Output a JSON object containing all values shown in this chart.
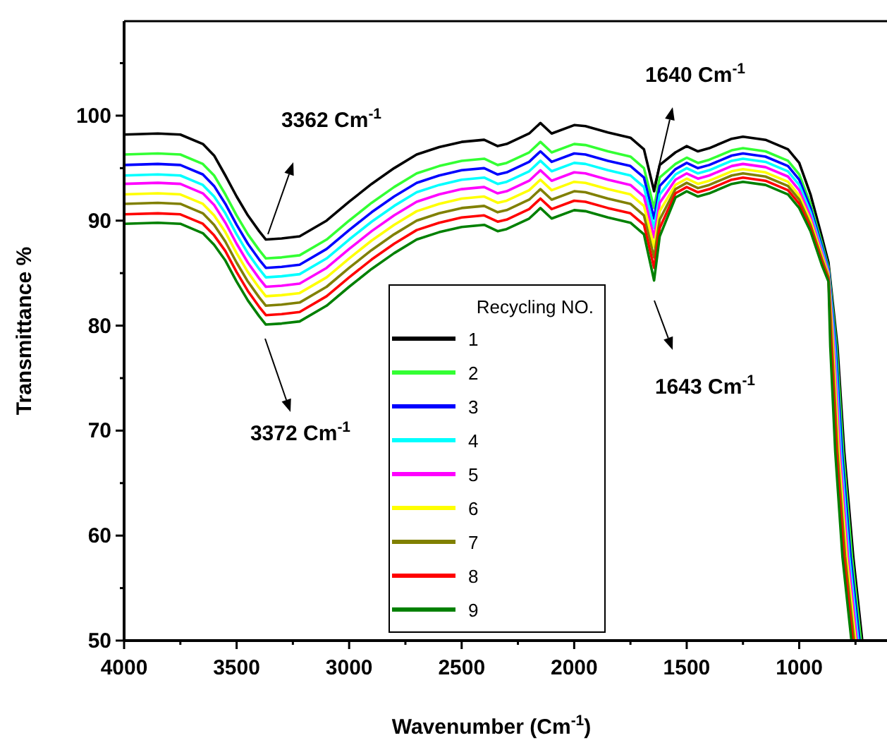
{
  "chart_data": {
    "type": "line",
    "xlabel": "Wavenumber (Cm$^{-1}$)",
    "ylabel": "Transmittance %",
    "legend_title": "Recycling NO.",
    "legend": "bottom",
    "grid": false,
    "marker": "none",
    "line_style": "solid",
    "xlim": [
      4000,
      610
    ],
    "ylim": [
      50,
      109
    ],
    "xticks": [
      4000,
      {
        "value": 3750,
        "label": null
      },
      3500,
      {
        "value": 3250,
        "label": null
      },
      3000,
      {
        "value": 2750,
        "label": null
      },
      2500,
      {
        "value": 2250,
        "label": null
      },
      2000,
      {
        "value": 1750,
        "label": null
      },
      1500,
      {
        "value": 1250,
        "label": null
      },
      1000,
      {
        "value": 750,
        "label": null
      }
    ],
    "yticks": [
      50,
      {
        "value": 55,
        "label": null
      },
      60,
      {
        "value": 65,
        "label": null
      },
      70,
      {
        "value": 75,
        "label": null
      },
      80,
      {
        "value": 85,
        "label": null
      },
      90,
      {
        "value": 95,
        "label": null
      },
      100,
      {
        "value": 105,
        "label": null
      }
    ],
    "series": [
      {
        "name": "1",
        "color": "#000000",
        "x": [
          4000,
          3850,
          3750,
          3650,
          3600,
          3550,
          3500,
          3450,
          3400,
          3370,
          3300,
          3220,
          3100,
          3000,
          2900,
          2800,
          2700,
          2600,
          2500,
          2400,
          2340,
          2300,
          2200,
          2150,
          2100,
          2000,
          1950,
          1850,
          1750,
          1690,
          1645,
          1620,
          1550,
          1500,
          1450,
          1400,
          1300,
          1250,
          1150,
          1050,
          1000,
          950,
          900,
          870,
          830,
          800,
          760,
          720
        ],
        "values": [
          98.2,
          98.3,
          98.2,
          97.3,
          96.2,
          94.3,
          92.3,
          90.5,
          89.0,
          88.2,
          88.3,
          88.5,
          90.0,
          91.8,
          93.5,
          95.0,
          96.3,
          97.0,
          97.5,
          97.7,
          97.1,
          97.3,
          98.3,
          99.3,
          98.3,
          99.1,
          99.0,
          98.4,
          97.9,
          96.8,
          92.8,
          95.3,
          96.5,
          97.1,
          96.6,
          96.9,
          97.8,
          98.0,
          97.7,
          96.8,
          95.5,
          92.5,
          88.5,
          86.0,
          78.0,
          68.0,
          58.0,
          50
        ]
      },
      {
        "name": "2",
        "color": "#33ff33",
        "x": [
          4000,
          3850,
          3750,
          3650,
          3600,
          3550,
          3500,
          3450,
          3400,
          3370,
          3300,
          3220,
          3100,
          3000,
          2900,
          2800,
          2700,
          2600,
          2500,
          2400,
          2340,
          2300,
          2200,
          2150,
          2100,
          2000,
          1950,
          1850,
          1750,
          1690,
          1645,
          1620,
          1550,
          1500,
          1450,
          1400,
          1300,
          1250,
          1150,
          1050,
          1000,
          950,
          900,
          870,
          834,
          805,
          766,
          726
        ],
        "values": [
          96.3,
          96.4,
          96.3,
          95.4,
          94.3,
          92.5,
          90.5,
          88.7,
          87.2,
          86.4,
          86.5,
          86.7,
          88.2,
          90.0,
          91.7,
          93.2,
          94.5,
          95.2,
          95.7,
          95.9,
          95.3,
          95.5,
          96.5,
          97.5,
          96.5,
          97.3,
          97.2,
          96.6,
          96.1,
          95.0,
          91.2,
          94.1,
          95.4,
          96.0,
          95.5,
          95.8,
          96.7,
          96.9,
          96.6,
          95.7,
          94.4,
          91.6,
          87.9,
          85.6,
          78.0,
          68.0,
          58.0,
          50
        ]
      },
      {
        "name": "3",
        "color": "#0000ff",
        "x": [
          4000,
          3850,
          3750,
          3650,
          3600,
          3550,
          3500,
          3450,
          3400,
          3370,
          3300,
          3220,
          3100,
          3000,
          2900,
          2800,
          2700,
          2600,
          2500,
          2400,
          2340,
          2300,
          2200,
          2150,
          2100,
          2000,
          1950,
          1850,
          1750,
          1690,
          1645,
          1620,
          1550,
          1500,
          1450,
          1400,
          1300,
          1250,
          1150,
          1050,
          1000,
          950,
          900,
          870,
          838,
          810,
          772,
          732
        ],
        "values": [
          95.3,
          95.4,
          95.3,
          94.4,
          93.3,
          91.6,
          89.6,
          87.8,
          86.3,
          85.5,
          85.6,
          85.8,
          87.3,
          89.1,
          90.8,
          92.3,
          93.6,
          94.3,
          94.8,
          95.0,
          94.4,
          94.6,
          95.6,
          96.6,
          95.6,
          96.4,
          96.3,
          95.7,
          95.2,
          94.1,
          90.2,
          93.3,
          94.9,
          95.5,
          95.0,
          95.3,
          96.2,
          96.4,
          96.1,
          95.2,
          93.9,
          91.2,
          87.6,
          85.4,
          78.0,
          68.0,
          58.0,
          50
        ]
      },
      {
        "name": "4",
        "color": "#00ffff",
        "x": [
          4000,
          3850,
          3750,
          3650,
          3600,
          3550,
          3500,
          3450,
          3400,
          3370,
          3300,
          3220,
          3100,
          3000,
          2900,
          2800,
          2700,
          2600,
          2500,
          2400,
          2340,
          2300,
          2200,
          2150,
          2100,
          2000,
          1950,
          1850,
          1750,
          1690,
          1645,
          1620,
          1550,
          1500,
          1450,
          1400,
          1300,
          1250,
          1150,
          1050,
          1000,
          950,
          900,
          870,
          842,
          815,
          778,
          738
        ],
        "values": [
          94.3,
          94.4,
          94.3,
          93.4,
          92.3,
          90.7,
          88.7,
          86.9,
          85.4,
          84.6,
          84.7,
          84.9,
          86.4,
          88.2,
          89.9,
          91.4,
          92.7,
          93.4,
          93.9,
          94.1,
          93.5,
          93.7,
          94.7,
          95.7,
          94.7,
          95.5,
          95.4,
          94.8,
          94.3,
          93.2,
          89.3,
          92.5,
          94.4,
          95.0,
          94.5,
          94.8,
          95.7,
          95.9,
          95.6,
          94.7,
          93.4,
          90.8,
          87.3,
          85.2,
          78.0,
          68.0,
          58.0,
          50
        ]
      },
      {
        "name": "5",
        "color": "#ff00ff",
        "x": [
          4000,
          3850,
          3750,
          3650,
          3600,
          3550,
          3500,
          3450,
          3400,
          3370,
          3300,
          3220,
          3100,
          3000,
          2900,
          2800,
          2700,
          2600,
          2500,
          2400,
          2340,
          2300,
          2200,
          2150,
          2100,
          2000,
          1950,
          1850,
          1750,
          1690,
          1645,
          1620,
          1550,
          1500,
          1450,
          1400,
          1300,
          1250,
          1150,
          1050,
          1000,
          950,
          900,
          870,
          846,
          820,
          784,
          744
        ],
        "values": [
          93.5,
          93.6,
          93.5,
          92.6,
          91.5,
          89.8,
          87.8,
          86.0,
          84.5,
          83.7,
          83.8,
          84.0,
          85.5,
          87.3,
          89.0,
          90.5,
          91.8,
          92.5,
          93.0,
          93.2,
          92.6,
          92.8,
          93.8,
          94.8,
          93.8,
          94.6,
          94.5,
          93.9,
          93.4,
          92.3,
          88.4,
          91.7,
          93.9,
          94.5,
          94.0,
          94.3,
          95.2,
          95.4,
          95.1,
          94.2,
          92.9,
          90.4,
          87.0,
          85.0,
          78.0,
          68.0,
          58.0,
          50
        ]
      },
      {
        "name": "6",
        "color": "#ffff00",
        "x": [
          4000,
          3850,
          3750,
          3650,
          3600,
          3550,
          3500,
          3450,
          3400,
          3370,
          3300,
          3220,
          3100,
          3000,
          2900,
          2800,
          2700,
          2600,
          2500,
          2400,
          2340,
          2300,
          2200,
          2150,
          2100,
          2000,
          1950,
          1850,
          1750,
          1690,
          1645,
          1620,
          1550,
          1500,
          1450,
          1400,
          1300,
          1250,
          1150,
          1050,
          1000,
          950,
          900,
          870,
          850,
          825,
          790,
          750
        ],
        "values": [
          92.5,
          92.6,
          92.5,
          91.6,
          90.5,
          88.9,
          86.9,
          85.1,
          83.6,
          82.8,
          82.9,
          83.1,
          84.6,
          86.4,
          88.1,
          89.6,
          90.9,
          91.6,
          92.1,
          92.3,
          91.7,
          91.9,
          92.9,
          93.9,
          92.9,
          93.7,
          93.6,
          93.0,
          92.5,
          91.4,
          87.5,
          90.9,
          93.4,
          94.0,
          93.5,
          93.8,
          94.7,
          94.9,
          94.6,
          93.7,
          92.4,
          90.0,
          86.7,
          84.8,
          78.0,
          68.0,
          58.0,
          50
        ]
      },
      {
        "name": "7",
        "color": "#808000",
        "x": [
          4000,
          3850,
          3750,
          3650,
          3600,
          3550,
          3500,
          3450,
          3400,
          3370,
          3300,
          3220,
          3100,
          3000,
          2900,
          2800,
          2700,
          2600,
          2500,
          2400,
          2340,
          2300,
          2200,
          2150,
          2100,
          2000,
          1950,
          1850,
          1750,
          1690,
          1645,
          1620,
          1550,
          1500,
          1450,
          1400,
          1300,
          1250,
          1150,
          1050,
          1000,
          950,
          900,
          870,
          854,
          830,
          796,
          756
        ],
        "values": [
          91.6,
          91.7,
          91.6,
          90.7,
          89.6,
          88.0,
          86.0,
          84.2,
          82.7,
          81.9,
          82.0,
          82.2,
          83.7,
          85.5,
          87.2,
          88.7,
          90.0,
          90.7,
          91.2,
          91.4,
          90.8,
          91.0,
          92.0,
          93.0,
          92.0,
          92.8,
          92.7,
          92.1,
          91.6,
          90.5,
          86.5,
          90.1,
          93.0,
          93.6,
          93.1,
          93.4,
          94.3,
          94.5,
          94.2,
          93.3,
          92.0,
          89.6,
          86.4,
          84.6,
          78.0,
          68.0,
          58.0,
          50
        ]
      },
      {
        "name": "8",
        "color": "#ff0000",
        "x": [
          4000,
          3850,
          3750,
          3650,
          3600,
          3550,
          3500,
          3450,
          3400,
          3370,
          3300,
          3220,
          3100,
          3000,
          2900,
          2800,
          2700,
          2600,
          2500,
          2400,
          2340,
          2300,
          2200,
          2150,
          2100,
          2000,
          1950,
          1850,
          1750,
          1690,
          1645,
          1620,
          1550,
          1500,
          1450,
          1400,
          1300,
          1250,
          1150,
          1050,
          1000,
          950,
          900,
          870,
          858,
          835,
          802,
          762
        ],
        "values": [
          90.6,
          90.7,
          90.6,
          89.7,
          88.6,
          87.1,
          85.1,
          83.3,
          81.8,
          81.0,
          81.1,
          81.3,
          82.8,
          84.6,
          86.3,
          87.8,
          89.1,
          89.8,
          90.3,
          90.5,
          89.9,
          90.1,
          91.1,
          92.1,
          91.1,
          91.9,
          91.8,
          91.2,
          90.7,
          89.6,
          85.5,
          89.3,
          92.6,
          93.2,
          92.7,
          93.0,
          93.9,
          94.1,
          93.8,
          92.9,
          91.6,
          89.3,
          86.1,
          84.4,
          78.0,
          68.0,
          58.0,
          50
        ]
      },
      {
        "name": "9",
        "color": "#008000",
        "x": [
          4000,
          3850,
          3750,
          3650,
          3600,
          3550,
          3500,
          3450,
          3400,
          3370,
          3300,
          3220,
          3100,
          3000,
          2900,
          2800,
          2700,
          2600,
          2500,
          2400,
          2340,
          2300,
          2200,
          2150,
          2100,
          2000,
          1950,
          1850,
          1750,
          1690,
          1645,
          1620,
          1550,
          1500,
          1450,
          1400,
          1300,
          1250,
          1150,
          1050,
          1000,
          950,
          900,
          870,
          862,
          840,
          808,
          768
        ],
        "values": [
          89.7,
          89.8,
          89.7,
          88.8,
          87.7,
          86.2,
          84.2,
          82.4,
          80.9,
          80.1,
          80.2,
          80.4,
          81.9,
          83.7,
          85.4,
          86.9,
          88.2,
          88.9,
          89.4,
          89.6,
          89.0,
          89.2,
          90.2,
          91.2,
          90.2,
          91.0,
          90.9,
          90.3,
          89.8,
          88.7,
          84.3,
          88.5,
          92.2,
          92.8,
          92.3,
          92.6,
          93.5,
          93.7,
          93.4,
          92.5,
          91.2,
          89.0,
          85.8,
          84.2,
          78.0,
          68.0,
          58.0,
          50
        ]
      }
    ],
    "annotations": [
      "3362 Cm$^{-1}$",
      "3372 Cm$^{-1}$",
      "1640 Cm$^{-1}$",
      "1643 Cm$^{-1}$"
    ]
  }
}
